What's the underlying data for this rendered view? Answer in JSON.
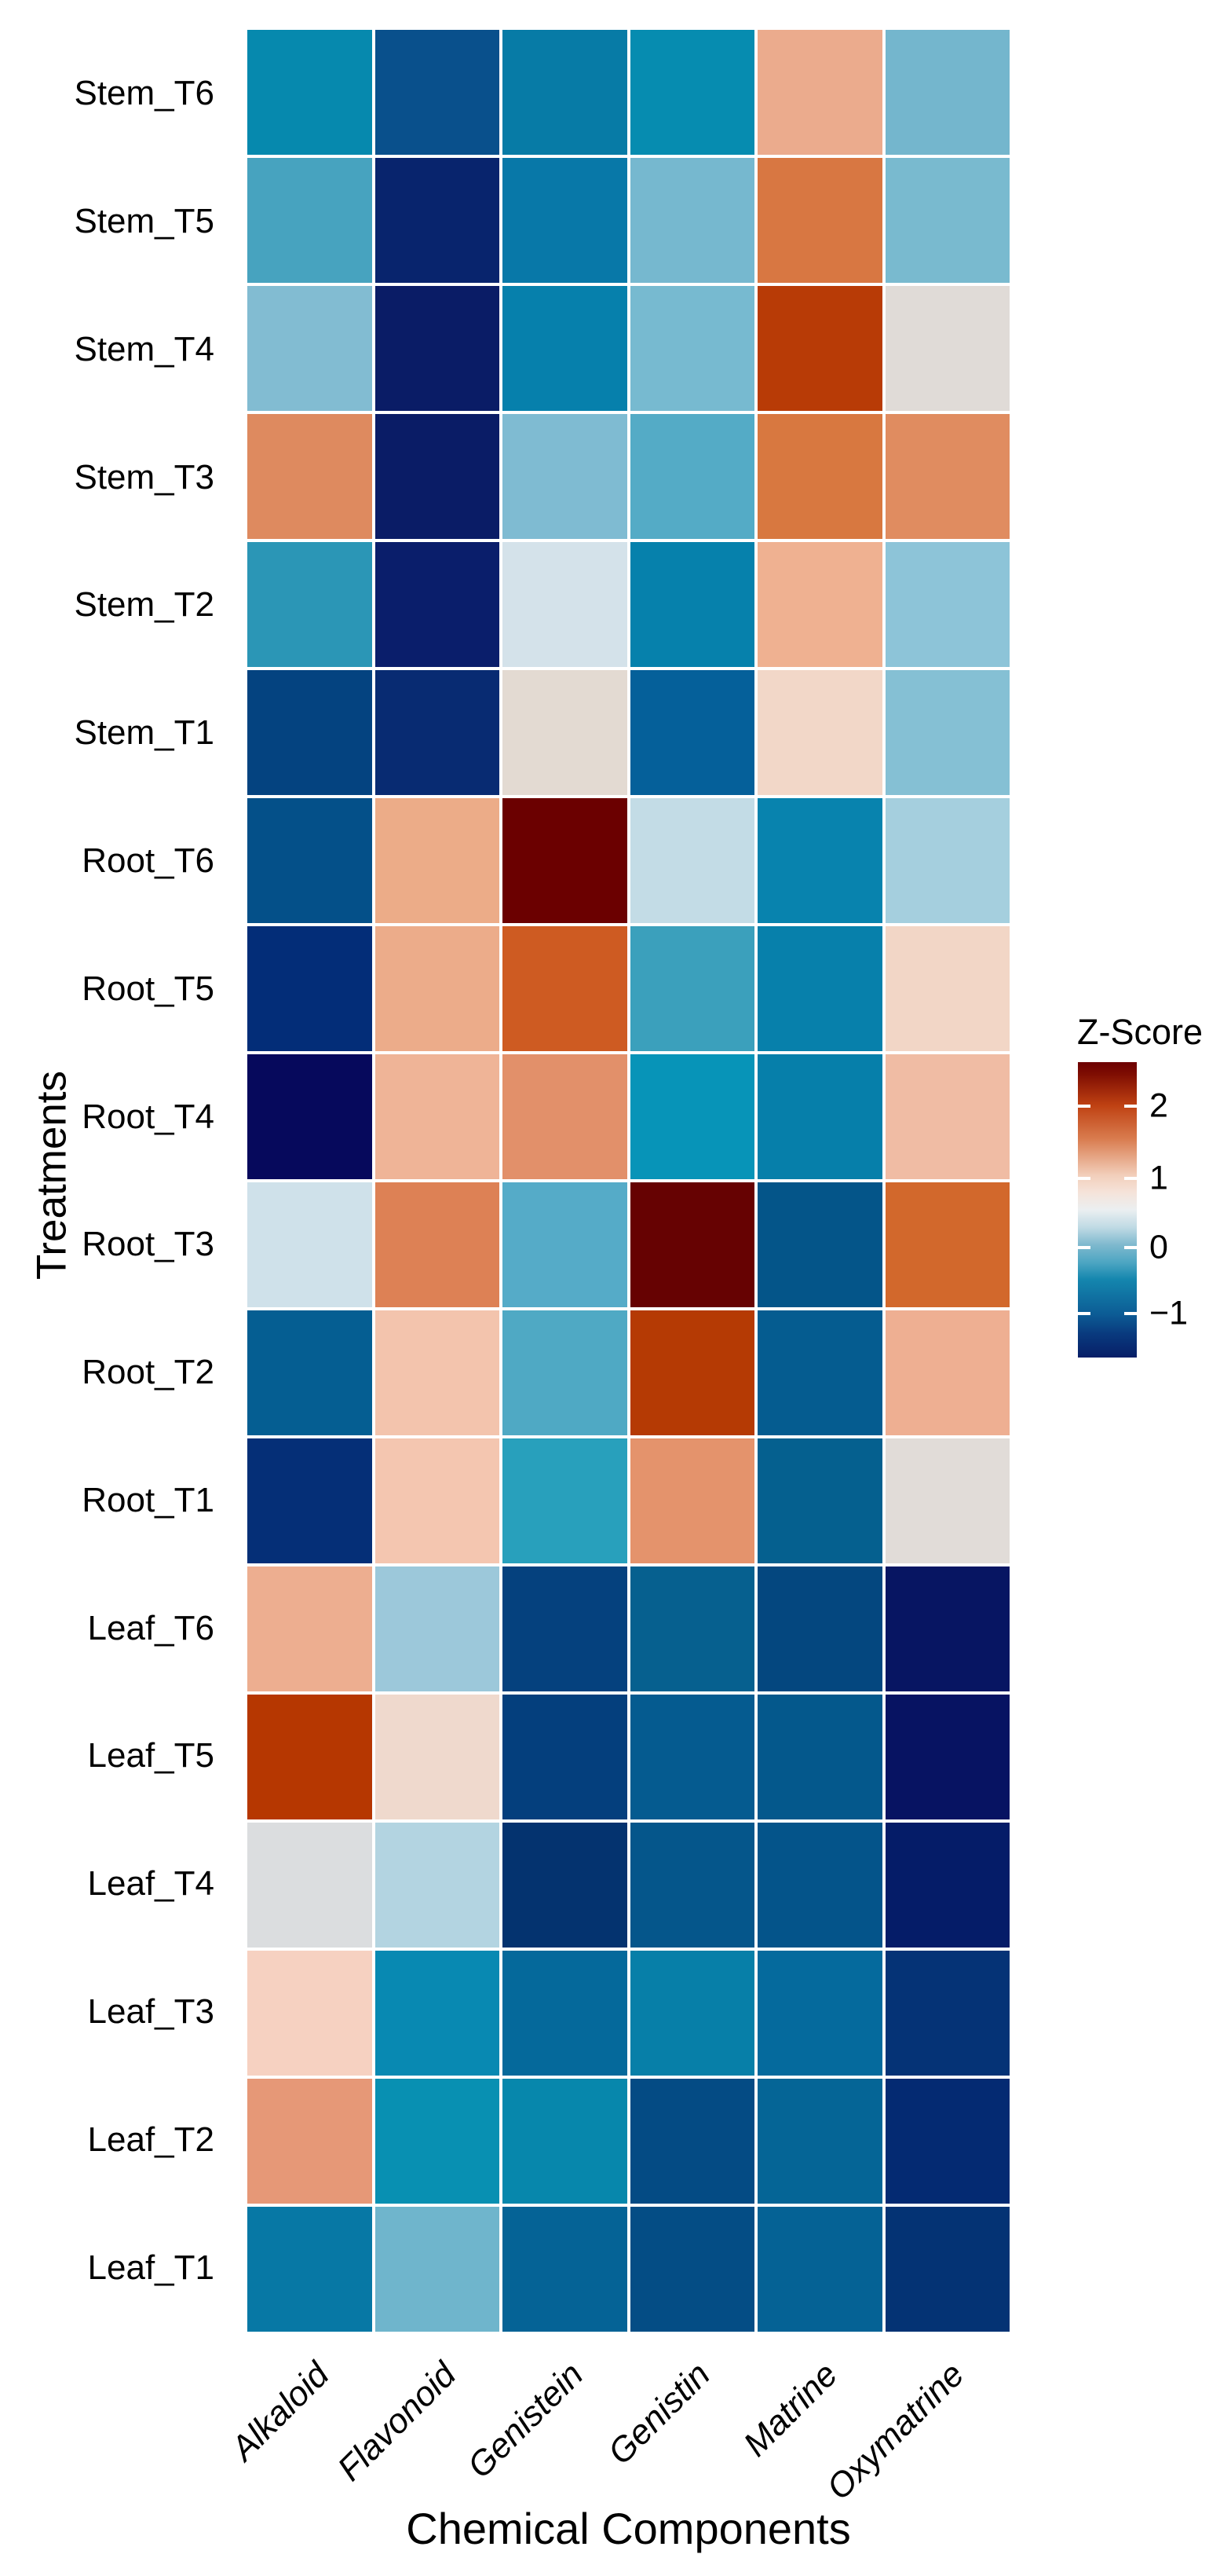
{
  "colors": {
    "background": "#ffffff",
    "text": "#000000",
    "grid_gap": "#ffffff"
  },
  "chart_data": {
    "type": "heatmap",
    "title": "",
    "xlabel": "Chemical Components",
    "ylabel": "Treatments",
    "legend_position": "right-middle",
    "grid": "white gaps between tiles",
    "columns": [
      "Alkaloid",
      "Flavonoid",
      "Genistein",
      "Genistin",
      "Matrine",
      "Oxymatrine"
    ],
    "rows": [
      "Stem_T6",
      "Stem_T5",
      "Stem_T4",
      "Stem_T3",
      "Stem_T2",
      "Stem_T1",
      "Root_T6",
      "Root_T5",
      "Root_T4",
      "Root_T3",
      "Root_T2",
      "Root_T1",
      "Leaf_T6",
      "Leaf_T5",
      "Leaf_T4",
      "Leaf_T3",
      "Leaf_T2",
      "Leaf_T1"
    ],
    "z_values_estimated": [
      [
        -0.4,
        -0.9,
        -0.5,
        -0.4,
        1.3,
        -0.1
      ],
      [
        -0.2,
        -1.3,
        -0.5,
        -0.1,
        1.8,
        -0.1
      ],
      [
        0.0,
        -1.4,
        -0.5,
        -0.1,
        2.2,
        0.6
      ],
      [
        1.6,
        -1.4,
        0.0,
        -0.2,
        1.8,
        1.6
      ],
      [
        -0.3,
        -1.4,
        0.4,
        -0.5,
        1.2,
        0.1
      ],
      [
        -1.0,
        -1.2,
        0.6,
        -0.8,
        0.9,
        0.0
      ],
      [
        -0.9,
        1.3,
        2.6,
        0.3,
        -0.4,
        0.2
      ],
      [
        -1.2,
        1.3,
        2.0,
        -0.2,
        -0.5,
        0.9
      ],
      [
        -1.6,
        1.2,
        1.5,
        -0.3,
        -0.5,
        1.2
      ],
      [
        0.4,
        1.7,
        -0.2,
        2.6,
        -0.9,
        1.9
      ],
      [
        -0.8,
        1.0,
        -0.2,
        2.2,
        -0.8,
        1.3
      ],
      [
        -1.2,
        1.0,
        -0.3,
        1.5,
        -0.8,
        0.6
      ],
      [
        1.3,
        0.1,
        -1.0,
        -0.8,
        -1.0,
        -1.5
      ],
      [
        2.2,
        0.9,
        -1.1,
        -0.8,
        -0.9,
        -1.5
      ],
      [
        0.6,
        0.2,
        -1.2,
        -0.9,
        -0.9,
        -1.4
      ],
      [
        0.9,
        -0.4,
        -0.7,
        -0.5,
        -0.7,
        -1.1
      ],
      [
        1.5,
        -0.4,
        -0.4,
        -1.0,
        -0.8,
        -1.3
      ],
      [
        -0.5,
        -0.1,
        -0.8,
        -1.0,
        -0.8,
        -1.2
      ]
    ],
    "cell_colors": [
      [
        "#0689AE",
        "#09508C",
        "#077BA6",
        "#068CB0",
        "#EBAB8D",
        "#74B6CD"
      ],
      [
        "#47A3BF",
        "#08246D",
        "#0878A8",
        "#76B8CF",
        "#D87742",
        "#79BACF"
      ],
      [
        "#82BCD2",
        "#0A1C66",
        "#0680AC",
        "#77BAD0",
        "#B83B06",
        "#E0DBD7"
      ],
      [
        "#DE8A5F",
        "#0A1C66",
        "#7FBBD2",
        "#54ABC6",
        "#D87840",
        "#E08C60"
      ],
      [
        "#2B96B6",
        "#0A1E6B",
        "#D4E2EA",
        "#0681AC",
        "#EFB191",
        "#8DC4D8"
      ],
      [
        "#044380",
        "#082B72",
        "#E3DAD2",
        "#05609A",
        "#F2D7C8",
        "#85C0D4"
      ],
      [
        "#045089",
        "#ECAC88",
        "#6B0000",
        "#C3DCE6",
        "#0883AE",
        "#A5CFDE"
      ],
      [
        "#032D78",
        "#ECAC8A",
        "#CE5B22",
        "#3BA0BC",
        "#0780AB",
        "#F2D6C6"
      ],
      [
        "#06095C",
        "#EFB497",
        "#E2906A",
        "#0794B8",
        "#067FAA",
        "#F0BCA4"
      ],
      [
        "#CFE1EA",
        "#DD8155",
        "#55ABC8",
        "#660202",
        "#045589",
        "#D2682C"
      ],
      [
        "#055E92",
        "#F3C4AD",
        "#4FA9C4",
        "#B53A04",
        "#055C90",
        "#EEAF92"
      ],
      [
        "#052F77",
        "#F4C6B0",
        "#28A0BC",
        "#E4936C",
        "#05608F",
        "#E1DCD8"
      ],
      [
        "#EDAE90",
        "#9CC8DA",
        "#05417E",
        "#06608F",
        "#04477F",
        "#071562"
      ],
      [
        "#B63701",
        "#EFD9CD",
        "#043F7D",
        "#055B90",
        "#04588C",
        "#071362"
      ],
      [
        "#DBDDDF",
        "#B3D4E1",
        "#04336F",
        "#05568B",
        "#04548A",
        "#051C68"
      ],
      [
        "#F6D1C1",
        "#0889B2",
        "#05699B",
        "#077FA8",
        "#056A9D",
        "#053376"
      ],
      [
        "#E69877",
        "#0890B2",
        "#0787AC",
        "#044B84",
        "#056596",
        "#042A72"
      ],
      [
        "#0778A5",
        "#6FB5CC",
        "#056396",
        "#044D85",
        "#056295",
        "#043374"
      ]
    ],
    "legend": {
      "title": "Z-Score",
      "range_estimated": [
        -1.6,
        2.6
      ],
      "ticks": [
        {
          "label": "2",
          "t": 0.149
        },
        {
          "label": "1",
          "t": 0.394
        },
        {
          "label": "0",
          "t": 0.628
        },
        {
          "label": "−1",
          "t": 0.851
        }
      ],
      "gradient_stops": [
        {
          "pct": 0,
          "color": "#6C0001"
        },
        {
          "pct": 4,
          "color": "#7E0D02"
        },
        {
          "pct": 14.6,
          "color": "#BF4112"
        },
        {
          "pct": 26,
          "color": "#D97C4F"
        },
        {
          "pct": 38.2,
          "color": "#F2CEBA"
        },
        {
          "pct": 44,
          "color": "#F5E3D9"
        },
        {
          "pct": 50,
          "color": "#EBEFF1"
        },
        {
          "pct": 56,
          "color": "#BFDAE4"
        },
        {
          "pct": 61.8,
          "color": "#7FB9CE"
        },
        {
          "pct": 68,
          "color": "#4BA5C2"
        },
        {
          "pct": 73.6,
          "color": "#1486AE"
        },
        {
          "pct": 85.4,
          "color": "#0C5C95"
        },
        {
          "pct": 92,
          "color": "#093A7E"
        },
        {
          "pct": 100,
          "color": "#071E67"
        }
      ]
    }
  }
}
